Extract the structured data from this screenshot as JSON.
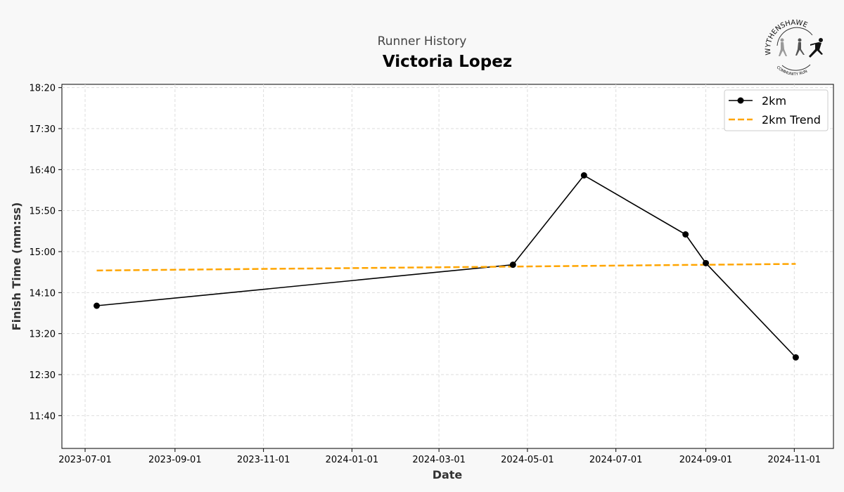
{
  "chart_data": {
    "type": "line",
    "suptitle": "Runner History",
    "title": "Victoria Lopez",
    "xlabel": "Date",
    "ylabel": "Finish Time (mm:ss)",
    "x_ticks": [
      "2023-07-01",
      "2023-09-01",
      "2023-11-01",
      "2024-01-01",
      "2024-03-01",
      "2024-05-01",
      "2024-07-01",
      "2024-09-01",
      "2024-11-01"
    ],
    "y_ticks": [
      "11:40",
      "12:30",
      "13:20",
      "14:10",
      "15:00",
      "15:50",
      "16:40",
      "17:30",
      "18:20"
    ],
    "ylim_seconds": [
      660,
      1104
    ],
    "xlim": [
      "2023-06-15",
      "2024-11-28"
    ],
    "grid": true,
    "legend_position": "top-right",
    "series": [
      {
        "name": "2km",
        "style": "solid-marker",
        "color": "#000000",
        "points": [
          {
            "date": "2023-07-09",
            "time": "13:54"
          },
          {
            "date": "2024-04-21",
            "time": "14:44"
          },
          {
            "date": "2024-06-09",
            "time": "16:33"
          },
          {
            "date": "2024-08-18",
            "time": "15:21"
          },
          {
            "date": "2024-09-01",
            "time": "14:46"
          },
          {
            "date": "2024-11-02",
            "time": "12:51"
          }
        ]
      },
      {
        "name": "2km Trend",
        "style": "dashed",
        "color": "#ffa500",
        "points": [
          {
            "date": "2023-07-09",
            "time": "14:37"
          },
          {
            "date": "2024-11-02",
            "time": "14:45"
          }
        ]
      }
    ]
  },
  "logo": {
    "top_text": "WYTHENSHAWE",
    "bottom_text": "COMMUNITY RUN"
  }
}
